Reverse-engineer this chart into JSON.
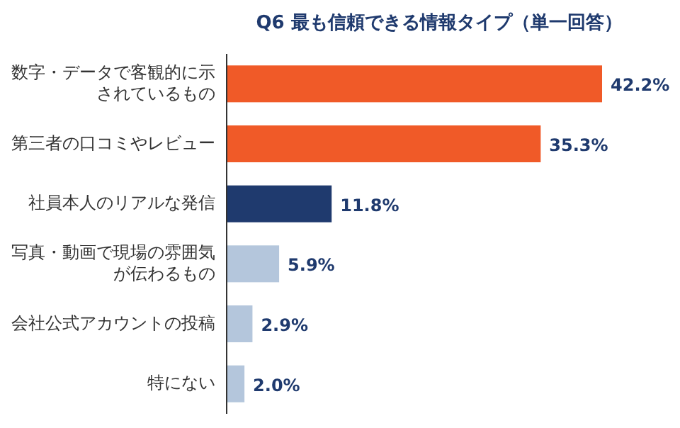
{
  "chart_data": {
    "type": "bar",
    "orientation": "horizontal",
    "title": "Q6 最も信頼できる情報タイプ（単一回答）",
    "categories": [
      "数字・データで客観的に示されているもの",
      "第三者の口コミやレビュー",
      "社員本人のリアルな発信",
      "写真・動画で現場の雰囲気が伝わるもの",
      "会社公式アカウントの投稿",
      "特にない"
    ],
    "values": [
      42.2,
      35.3,
      11.8,
      5.9,
      2.9,
      2.0
    ],
    "value_labels": [
      "42.2%",
      "35.3%",
      "11.8%",
      "5.9%",
      "2.9%",
      "2.0%"
    ],
    "colors": [
      "#f05a28",
      "#f05a28",
      "#1f3a6e",
      "#b4c6dc",
      "#b4c6dc",
      "#b4c6dc"
    ]
  }
}
